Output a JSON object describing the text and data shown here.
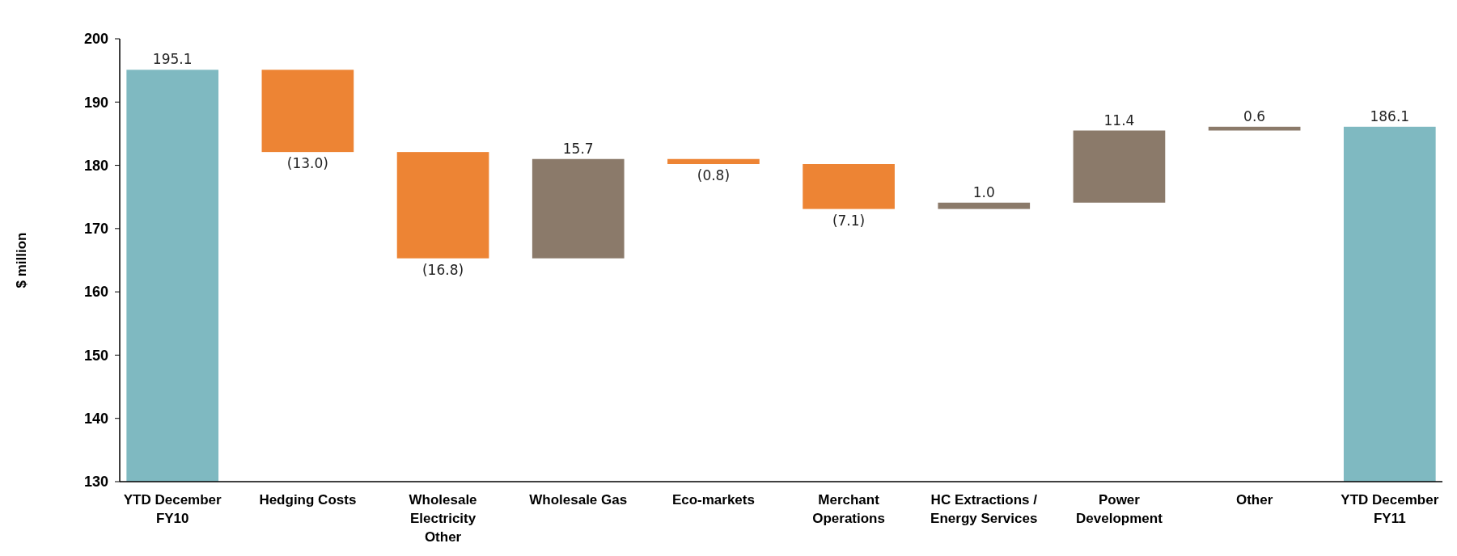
{
  "chart_data": {
    "type": "bar",
    "ylabel": "$ million",
    "categories": [
      "YTD December FY10",
      "Hedging Costs",
      "Wholesale Electricity Other",
      "Wholesale Gas",
      "Eco-markets",
      "Merchant Operations",
      "HC Extractions / Energy Services",
      "Power Development",
      "Other",
      "YTD December FY11"
    ],
    "values": [
      195.1,
      -13.0,
      -16.8,
      15.7,
      -0.8,
      -7.1,
      1.0,
      11.4,
      0.6,
      186.1
    ],
    "base": [
      null,
      195.1,
      182.1,
      165.3,
      181.0,
      180.2,
      173.1,
      174.1,
      185.5,
      null
    ],
    "colors": [
      "#7fb9c1",
      "#ed8434",
      "#ed8434",
      "#8b7a6a",
      "#ed8434",
      "#ed8434",
      "#8b7a6a",
      "#8b7a6a",
      "#8b7a6a",
      "#7fb9c1"
    ],
    "value_labels": [
      "195.1",
      "(13.0)",
      "(16.8)",
      "15.7",
      "(0.8)",
      "(7.1)",
      "1.0",
      "11.4",
      "0.6",
      "186.1"
    ],
    "ylim": [
      130,
      200
    ],
    "yticks": [
      130,
      140,
      150,
      160,
      170,
      180,
      190,
      200
    ],
    "grid": false
  }
}
